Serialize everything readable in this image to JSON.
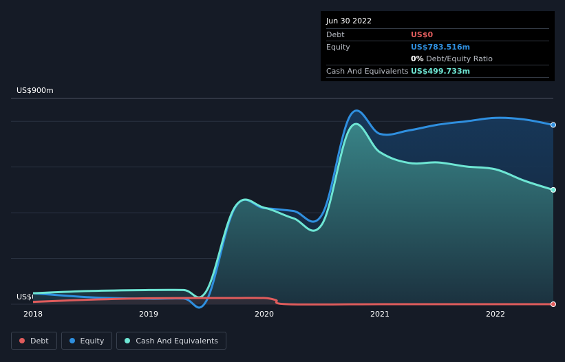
{
  "tooltip": {
    "date": "Jun 30 2022",
    "debt_label": "Debt",
    "debt_value": "US$0",
    "equity_label": "Equity",
    "equity_value": "US$783.516m",
    "ratio_value": "0%",
    "ratio_label": "Debt/Equity Ratio",
    "cash_label": "Cash And Equivalents",
    "cash_value": "US$499.733m"
  },
  "colors": {
    "debt": "#e05c5c",
    "equity": "#2f8fdf",
    "cash": "#6ee6d4",
    "background": "#151b26"
  },
  "chart_data": {
    "type": "area",
    "ylabel_top": "US$900m",
    "ylabel_zero": "US$0",
    "ylim": [
      0,
      900
    ],
    "xlim": [
      2018.0,
      2022.5
    ],
    "x_ticks": [
      "2018",
      "2019",
      "2020",
      "2021",
      "2022"
    ],
    "grid": true,
    "legend_position": "bottom-left",
    "series": [
      {
        "name": "Debt",
        "color": "#e05c5c",
        "points": [
          [
            2018.0,
            10
          ],
          [
            2018.5,
            20
          ],
          [
            2019.0,
            26
          ],
          [
            2019.5,
            27
          ],
          [
            2019.75,
            27
          ],
          [
            2020.0,
            27
          ],
          [
            2020.1,
            18
          ],
          [
            2020.2,
            0
          ],
          [
            2021.0,
            0
          ],
          [
            2022.0,
            0
          ],
          [
            2022.5,
            0
          ]
        ]
      },
      {
        "name": "Equity",
        "color": "#2f8fdf",
        "points": [
          [
            2018.0,
            48
          ],
          [
            2018.5,
            30
          ],
          [
            2019.0,
            24
          ],
          [
            2019.3,
            25
          ],
          [
            2019.5,
            15
          ],
          [
            2019.75,
            425
          ],
          [
            2020.0,
            420
          ],
          [
            2020.25,
            408
          ],
          [
            2020.5,
            392
          ],
          [
            2020.75,
            830
          ],
          [
            2021.0,
            745
          ],
          [
            2021.25,
            760
          ],
          [
            2021.5,
            785
          ],
          [
            2021.75,
            800
          ],
          [
            2022.0,
            815
          ],
          [
            2022.25,
            808
          ],
          [
            2022.5,
            784
          ]
        ]
      },
      {
        "name": "Cash And Equivalents",
        "color": "#6ee6d4",
        "points": [
          [
            2018.0,
            48
          ],
          [
            2018.5,
            58
          ],
          [
            2019.0,
            62
          ],
          [
            2019.3,
            62
          ],
          [
            2019.5,
            58
          ],
          [
            2019.75,
            428
          ],
          [
            2020.0,
            422
          ],
          [
            2020.25,
            376
          ],
          [
            2020.5,
            350
          ],
          [
            2020.75,
            775
          ],
          [
            2021.0,
            665
          ],
          [
            2021.25,
            618
          ],
          [
            2021.5,
            620
          ],
          [
            2021.75,
            602
          ],
          [
            2022.0,
            590
          ],
          [
            2022.25,
            540
          ],
          [
            2022.5,
            500
          ]
        ]
      }
    ]
  },
  "legend": [
    {
      "label": "Debt",
      "color": "#e05c5c"
    },
    {
      "label": "Equity",
      "color": "#2f8fdf"
    },
    {
      "label": "Cash And Equivalents",
      "color": "#6ee6d4"
    }
  ]
}
